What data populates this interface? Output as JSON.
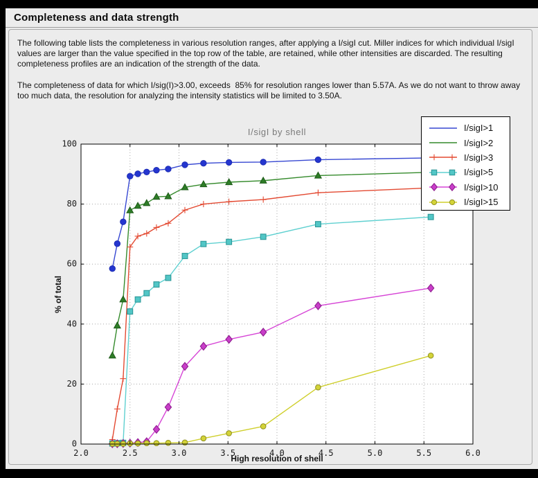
{
  "header": {
    "title": "Completeness and data strength"
  },
  "body_text": {
    "paragraph1": "The following table lists the completeness in various resolution ranges, after applying a I/sigI cut. Miller indices for which individual I/sigI values are larger than the value specified in the top row of the table, are retained, while other intensities are discarded. The resulting completeness profiles are an indication of the strength of the data.",
    "paragraph2": "The completeness of data for which I/sig(I)>3.00, exceeds  85% for resolution ranges lower than 5.57A. As we do not want to throw away too much data, the resolution for analyzing the intensity statistics will be limited to 3.50A."
  },
  "chart_data": {
    "type": "line",
    "title": "I/sigI by shell",
    "xlabel": "High resolution of shell",
    "ylabel": "% of total",
    "xlim": [
      2.0,
      6.0
    ],
    "ylim": [
      0,
      100
    ],
    "xticks": [
      "2.0",
      "2.5",
      "3.0",
      "3.5",
      "4.0",
      "4.5",
      "5.0",
      "5.5",
      "6.0"
    ],
    "yticks": [
      "0",
      "20",
      "40",
      "60",
      "80",
      "100"
    ],
    "grid": "dotted",
    "legend_position": "upper right",
    "x": [
      2.32,
      2.37,
      2.43,
      2.5,
      2.58,
      2.67,
      2.77,
      2.89,
      3.06,
      3.25,
      3.51,
      3.86,
      4.42,
      5.57
    ],
    "series": [
      {
        "name": "I/sigI>1",
        "line_color": "#3647d2",
        "marker": "circle",
        "marker_fill": "#2536cf",
        "marker_edge": "#1c2cb4",
        "marker_size": 4.2,
        "legend_marker": false,
        "values": [
          58.5,
          66.8,
          74.1,
          89.3,
          90.1,
          90.7,
          91.3,
          91.7,
          93.1,
          93.6,
          93.9,
          94.0,
          94.8,
          95.4
        ]
      },
      {
        "name": "I/sigI>2",
        "line_color": "#348a2b",
        "marker": "triangle",
        "marker_fill": "#2e7d27",
        "marker_edge": "#1d5a18",
        "marker_size": 5.0,
        "legend_marker": false,
        "values": [
          29.5,
          39.5,
          48.2,
          77.9,
          79.4,
          80.3,
          82.4,
          82.6,
          85.6,
          86.6,
          87.3,
          87.8,
          89.5,
          90.6
        ]
      },
      {
        "name": "I/sigI>3",
        "line_color": "#e34931",
        "marker": "plus",
        "marker_fill": "#e34931",
        "marker_edge": "#e34931",
        "marker_size": 4.5,
        "legend_marker": true,
        "values": [
          1.5,
          11.7,
          21.8,
          65.7,
          69.3,
          70.2,
          72.2,
          73.6,
          78.0,
          80.0,
          80.8,
          81.5,
          83.8,
          85.4
        ]
      },
      {
        "name": "I/sigI>5",
        "line_color": "#5ed0d0",
        "marker": "square",
        "marker_fill": "#52c6c6",
        "marker_edge": "#2d9898",
        "marker_size": 3.9,
        "legend_marker": true,
        "values": [
          0.2,
          0.3,
          0.4,
          44.2,
          48.2,
          50.3,
          53.2,
          55.4,
          62.7,
          66.7,
          67.4,
          69.1,
          73.3,
          75.7
        ]
      },
      {
        "name": "I/sigI>10",
        "line_color": "#d644d6",
        "marker": "diamond",
        "marker_fill": "#c93ec9",
        "marker_edge": "#8e1d8e",
        "marker_size": 5.0,
        "legend_marker": true,
        "values": [
          0.1,
          0.1,
          0.2,
          0.3,
          0.5,
          0.8,
          4.9,
          12.3,
          25.9,
          32.6,
          34.9,
          37.3,
          46.1,
          52.0
        ]
      },
      {
        "name": "I/sigI>15",
        "line_color": "#cfcf2c",
        "marker": "circle",
        "marker_fill": "#d3d338",
        "marker_edge": "#8f8f1f",
        "marker_size": 3.8,
        "legend_marker": true,
        "values": [
          0.1,
          0.1,
          0.1,
          0.2,
          0.2,
          0.3,
          0.3,
          0.4,
          0.5,
          1.9,
          3.6,
          5.9,
          18.9,
          29.5
        ]
      }
    ],
    "axis_colors": {
      "plot_bg": "#ffffff",
      "frame": "#000000",
      "grid": "#a8a8a8",
      "tick_text": "#1a1a1a"
    }
  }
}
